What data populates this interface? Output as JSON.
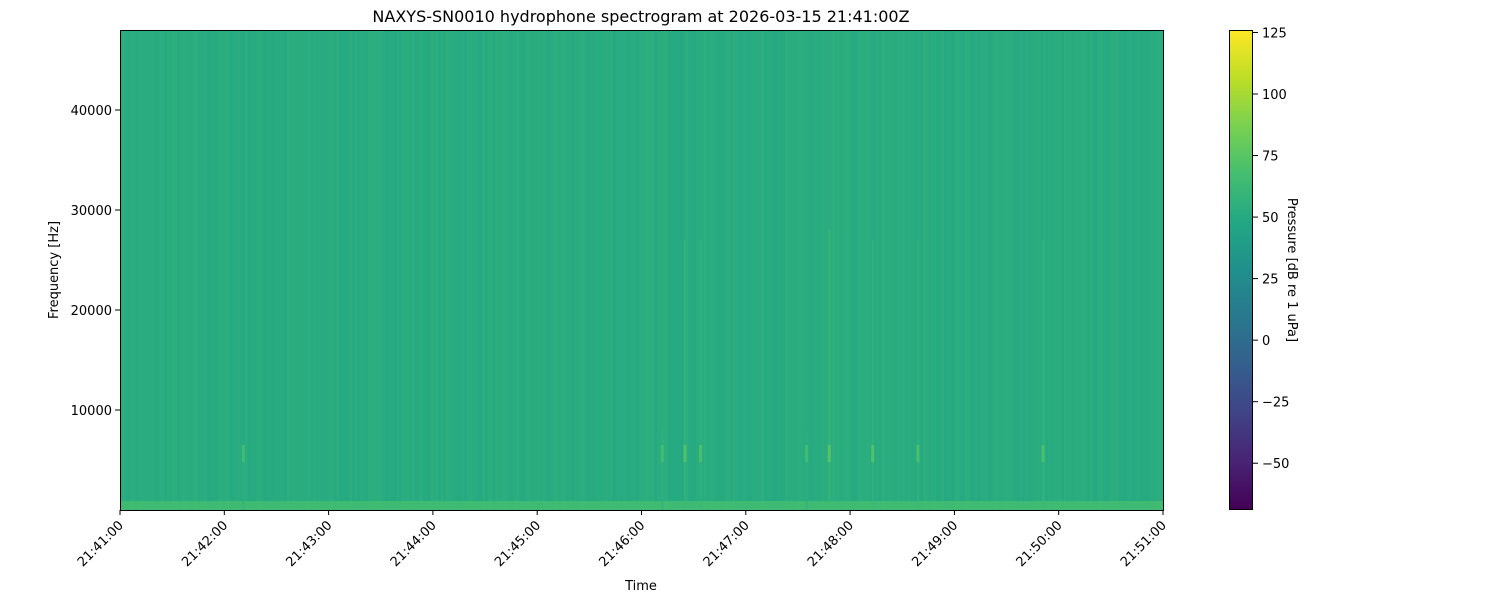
{
  "chart_data": {
    "type": "heatmap",
    "title": "NAXYS-SN0010 hydrophone spectrogram at 2026-03-15 21:41:00Z",
    "xlabel": "Time",
    "ylabel": "Frequency [Hz]",
    "colorbar_label": "Pressure [dB re 1 uPa]",
    "colormap": "viridis",
    "x_ticks": [
      "21:41:00",
      "21:42:00",
      "21:43:00",
      "21:44:00",
      "21:45:00",
      "21:46:00",
      "21:47:00",
      "21:48:00",
      "21:49:00",
      "21:50:00",
      "21:51:00"
    ],
    "xlim": [
      "21:41:00",
      "21:51:00"
    ],
    "y_ticks": [
      10000,
      20000,
      30000,
      40000
    ],
    "ylim": [
      0,
      48000
    ],
    "colorbar_ticks": [
      -50,
      -25,
      0,
      25,
      50,
      75,
      100,
      125
    ],
    "clim": [
      -69,
      126
    ],
    "background_level_db": 52,
    "low_frequency_band": {
      "fmax_hz": 500,
      "level_db": 68
    },
    "transients": [
      {
        "time": "21:42:11",
        "fmax_hz": 6000,
        "level_db": 62
      },
      {
        "time": "21:46:12",
        "fmax_hz": 8000,
        "level_db": 62
      },
      {
        "time": "21:46:25",
        "fmax_hz": 27000,
        "level_db": 68
      },
      {
        "time": "21:46:34",
        "fmax_hz": 27000,
        "level_db": 66
      },
      {
        "time": "21:47:35",
        "fmax_hz": 8000,
        "level_db": 62
      },
      {
        "time": "21:47:48",
        "fmax_hz": 28000,
        "level_db": 70
      },
      {
        "time": "21:48:13",
        "fmax_hz": 27000,
        "level_db": 68
      },
      {
        "time": "21:48:39",
        "fmax_hz": 27000,
        "level_db": 66
      },
      {
        "time": "21:49:51",
        "fmax_hz": 27000,
        "level_db": 66
      }
    ]
  }
}
